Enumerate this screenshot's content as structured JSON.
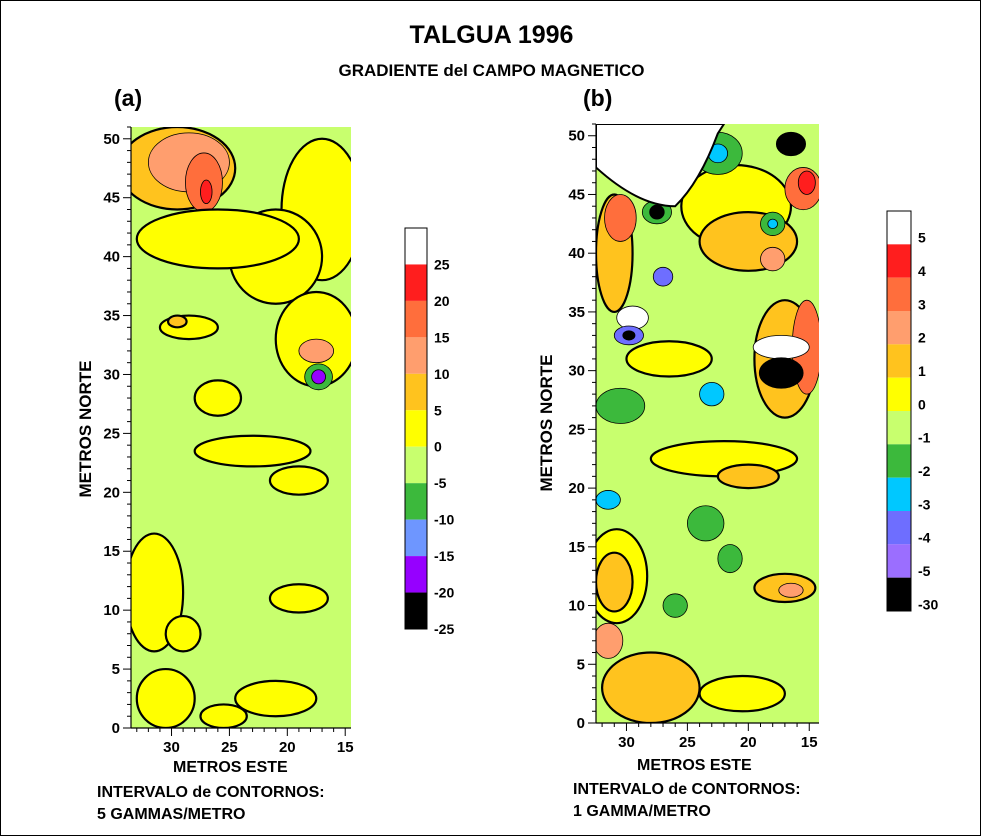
{
  "title": "TALGUA 1996",
  "subtitle": "GRADIENTE del CAMPO MAGNETICO",
  "chart_data": [
    {
      "type": "heatmap",
      "panel_label": "(a)",
      "xlabel": "METROS ESTE",
      "ylabel": "METROS NORTE",
      "x_ticks": [
        30,
        25,
        20,
        15
      ],
      "y_ticks": [
        0,
        5,
        10,
        15,
        20,
        25,
        30,
        35,
        40,
        45,
        50
      ],
      "xlim": [
        33.5,
        14.5
      ],
      "ylim": [
        0,
        51
      ],
      "x_reversed": true,
      "contour_note_line1": "INTERVALO de CONTORNOS:",
      "contour_note_line2": "5 GAMMAS/METRO",
      "colorbar": {
        "levels": [
          "25",
          "20",
          "15",
          "10",
          "5",
          "0",
          "-5",
          "-10",
          "-15",
          "-20",
          "-25"
        ],
        "colors": [
          "#ffffff",
          "#ff1e1e",
          "#ff6e3c",
          "#ff9e6e",
          "#ffc31e",
          "#ffff00",
          "#c8ff6e",
          "#3cb93c",
          "#6e96ff",
          "#9600ff",
          "#000000"
        ]
      },
      "base_color": "#c8ff6e",
      "features": [
        {
          "x": 29.5,
          "y": 47.5,
          "rx": 5,
          "ry": 3.5,
          "color": "#ffc31e"
        },
        {
          "x": 28.5,
          "y": 48,
          "rx": 3.5,
          "ry": 2.5,
          "color": "#ff9e6e"
        },
        {
          "x": 27.2,
          "y": 46.3,
          "rx": 1.6,
          "ry": 2.5,
          "color": "#ff6e3c"
        },
        {
          "x": 27,
          "y": 45.5,
          "rx": 0.5,
          "ry": 1,
          "color": "#ff1e1e"
        },
        {
          "x": 17,
          "y": 44,
          "rx": 3.5,
          "ry": 6,
          "color": "#ffff00"
        },
        {
          "x": 21,
          "y": 40,
          "rx": 4,
          "ry": 4,
          "color": "#ffff00"
        },
        {
          "x": 26,
          "y": 41.5,
          "rx": 7,
          "ry": 2.5,
          "color": "#ffff00"
        },
        {
          "x": 17.5,
          "y": 33,
          "rx": 3.5,
          "ry": 4,
          "color": "#ffff00"
        },
        {
          "x": 17.5,
          "y": 32,
          "rx": 1.5,
          "ry": 1,
          "color": "#ff9e6e"
        },
        {
          "x": 17.3,
          "y": 29.8,
          "rx": 1.2,
          "ry": 1.1,
          "color": "#3cb93c"
        },
        {
          "x": 17.3,
          "y": 29.8,
          "rx": 0.6,
          "ry": 0.6,
          "color": "#9600ff"
        },
        {
          "x": 26,
          "y": 28,
          "rx": 2,
          "ry": 1.5,
          "color": "#ffff00"
        },
        {
          "x": 28.5,
          "y": 34,
          "rx": 2.5,
          "ry": 1,
          "color": "#ffff00"
        },
        {
          "x": 29.5,
          "y": 34.5,
          "rx": 0.8,
          "ry": 0.5,
          "color": "#ffc31e"
        },
        {
          "x": 23,
          "y": 23.5,
          "rx": 5,
          "ry": 1.3,
          "color": "#ffff00"
        },
        {
          "x": 19,
          "y": 21,
          "rx": 2.5,
          "ry": 1.2,
          "color": "#ffff00"
        },
        {
          "x": 31.5,
          "y": 11.5,
          "rx": 2.5,
          "ry": 5,
          "color": "#ffff00"
        },
        {
          "x": 29,
          "y": 8,
          "rx": 1.5,
          "ry": 1.5,
          "color": "#ffff00"
        },
        {
          "x": 19,
          "y": 11,
          "rx": 2.5,
          "ry": 1.2,
          "color": "#ffff00"
        },
        {
          "x": 21,
          "y": 2.5,
          "rx": 3.5,
          "ry": 1.5,
          "color": "#ffff00"
        },
        {
          "x": 30.5,
          "y": 2.5,
          "rx": 2.5,
          "ry": 2.5,
          "color": "#ffff00"
        },
        {
          "x": 25.5,
          "y": 1,
          "rx": 2,
          "ry": 1,
          "color": "#ffff00"
        }
      ]
    },
    {
      "type": "heatmap",
      "panel_label": "(b)",
      "xlabel": "METROS ESTE",
      "ylabel": "METROS NORTE",
      "x_ticks": [
        30,
        25,
        20,
        15
      ],
      "y_ticks": [
        0,
        5,
        10,
        15,
        20,
        25,
        30,
        35,
        40,
        45,
        50
      ],
      "xlim": [
        32.5,
        14.2
      ],
      "ylim": [
        0,
        51
      ],
      "x_reversed": true,
      "contour_note_line1": "INTERVALO de CONTORNOS:",
      "contour_note_line2": "1 GAMMA/METRO",
      "colorbar": {
        "levels": [
          "5",
          "4",
          "3",
          "2",
          "1",
          "0",
          "-1",
          "-2",
          "-3",
          "-4",
          "-5",
          "-30"
        ],
        "colors": [
          "#ffffff",
          "#ff1e1e",
          "#ff6e3c",
          "#ff9e6e",
          "#ffc31e",
          "#ffff00",
          "#c8ff6e",
          "#3cb93c",
          "#00c8ff",
          "#6e6eff",
          "#9b6eff",
          "#000000"
        ]
      },
      "base_color": "#c8ff6e",
      "features": [
        {
          "x": 31,
          "y": 40,
          "rx": 1.5,
          "ry": 5,
          "color": "#ffc31e"
        },
        {
          "x": 30.5,
          "y": 43,
          "rx": 1.3,
          "ry": 2,
          "color": "#ff6e3c"
        },
        {
          "x": 27.5,
          "y": 43.5,
          "rx": 1.2,
          "ry": 1,
          "color": "#3cb93c"
        },
        {
          "x": 27.5,
          "y": 43.5,
          "rx": 0.6,
          "ry": 0.6,
          "color": "#000000"
        },
        {
          "x": 21,
          "y": 44,
          "rx": 4.5,
          "ry": 3.5,
          "color": "#ffff00"
        },
        {
          "x": 20,
          "y": 41,
          "rx": 4,
          "ry": 2.5,
          "color": "#ffc31e"
        },
        {
          "x": 18,
          "y": 39.5,
          "rx": 1,
          "ry": 1,
          "color": "#ff9e6e"
        },
        {
          "x": 15.5,
          "y": 45.5,
          "rx": 1.5,
          "ry": 1.8,
          "color": "#ff6e3c"
        },
        {
          "x": 15.2,
          "y": 46,
          "rx": 0.7,
          "ry": 1,
          "color": "#ff1e1e"
        },
        {
          "x": 22.5,
          "y": 48.5,
          "rx": 2,
          "ry": 1.8,
          "color": "#3cb93c"
        },
        {
          "x": 22.5,
          "y": 48.5,
          "rx": 0.8,
          "ry": 0.8,
          "color": "#00c8ff"
        },
        {
          "x": 16.5,
          "y": 49.3,
          "rx": 1.2,
          "ry": 1,
          "color": "#000000"
        },
        {
          "x": 18,
          "y": 42.5,
          "rx": 1,
          "ry": 1,
          "color": "#3cb93c"
        },
        {
          "x": 18,
          "y": 42.5,
          "rx": 0.4,
          "ry": 0.4,
          "color": "#00c8ff"
        },
        {
          "x": 17,
          "y": 31,
          "rx": 2.5,
          "ry": 5,
          "color": "#ffc31e"
        },
        {
          "x": 15.2,
          "y": 32,
          "rx": 1.2,
          "ry": 4,
          "color": "#ff6e3c"
        },
        {
          "x": 17.3,
          "y": 32,
          "rx": 2.3,
          "ry": 1,
          "color": "#ffffff"
        },
        {
          "x": 17.3,
          "y": 29.8,
          "rx": 1.8,
          "ry": 1.3,
          "color": "#000000"
        },
        {
          "x": 29.5,
          "y": 34.5,
          "rx": 1.3,
          "ry": 1,
          "color": "#ffffff"
        },
        {
          "x": 29.8,
          "y": 33,
          "rx": 1.2,
          "ry": 0.8,
          "color": "#6e6eff"
        },
        {
          "x": 29.8,
          "y": 33,
          "rx": 0.5,
          "ry": 0.4,
          "color": "#000000"
        },
        {
          "x": 27,
          "y": 38,
          "rx": 0.8,
          "ry": 0.8,
          "color": "#6e6eff"
        },
        {
          "x": 23,
          "y": 28,
          "rx": 1,
          "ry": 1,
          "color": "#00c8ff"
        },
        {
          "x": 30.5,
          "y": 27,
          "rx": 2,
          "ry": 1.5,
          "color": "#3cb93c"
        },
        {
          "x": 26.5,
          "y": 31,
          "rx": 3.5,
          "ry": 1.5,
          "color": "#ffff00"
        },
        {
          "x": 22,
          "y": 22.5,
          "rx": 6,
          "ry": 1.5,
          "color": "#ffff00"
        },
        {
          "x": 20,
          "y": 21,
          "rx": 2.5,
          "ry": 1,
          "color": "#ffc31e"
        },
        {
          "x": 31.5,
          "y": 19,
          "rx": 1,
          "ry": 0.8,
          "color": "#00c8ff"
        },
        {
          "x": 30.8,
          "y": 12.5,
          "rx": 2.5,
          "ry": 4,
          "color": "#ffff00"
        },
        {
          "x": 31,
          "y": 12,
          "rx": 1.5,
          "ry": 2.5,
          "color": "#ffc31e"
        },
        {
          "x": 17,
          "y": 11.5,
          "rx": 2.5,
          "ry": 1.2,
          "color": "#ffc31e"
        },
        {
          "x": 16.5,
          "y": 11.3,
          "rx": 1,
          "ry": 0.6,
          "color": "#ff9e6e"
        },
        {
          "x": 28,
          "y": 3,
          "rx": 4,
          "ry": 3,
          "color": "#ffc31e"
        },
        {
          "x": 31.5,
          "y": 7,
          "rx": 1.2,
          "ry": 1.5,
          "color": "#ff9e6e"
        },
        {
          "x": 20.5,
          "y": 2.5,
          "rx": 3.5,
          "ry": 1.5,
          "color": "#ffff00"
        },
        {
          "x": 26,
          "y": 10,
          "rx": 1,
          "ry": 1,
          "color": "#3cb93c"
        },
        {
          "x": 21.5,
          "y": 14,
          "rx": 1,
          "ry": 1.2,
          "color": "#3cb93c"
        },
        {
          "x": 23.5,
          "y": 17,
          "rx": 1.5,
          "ry": 1.5,
          "color": "#3cb93c"
        }
      ]
    }
  ]
}
